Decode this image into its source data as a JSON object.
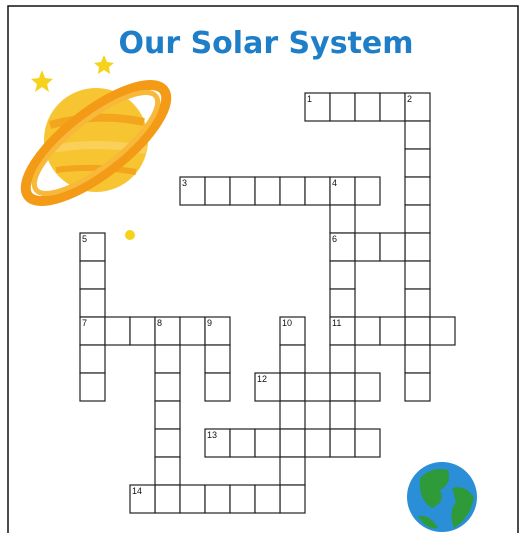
{
  "title": "Our Solar System",
  "numbers": [
    1,
    2,
    3,
    4,
    5,
    6,
    7,
    8,
    9,
    10,
    11,
    12,
    13,
    14
  ]
}
